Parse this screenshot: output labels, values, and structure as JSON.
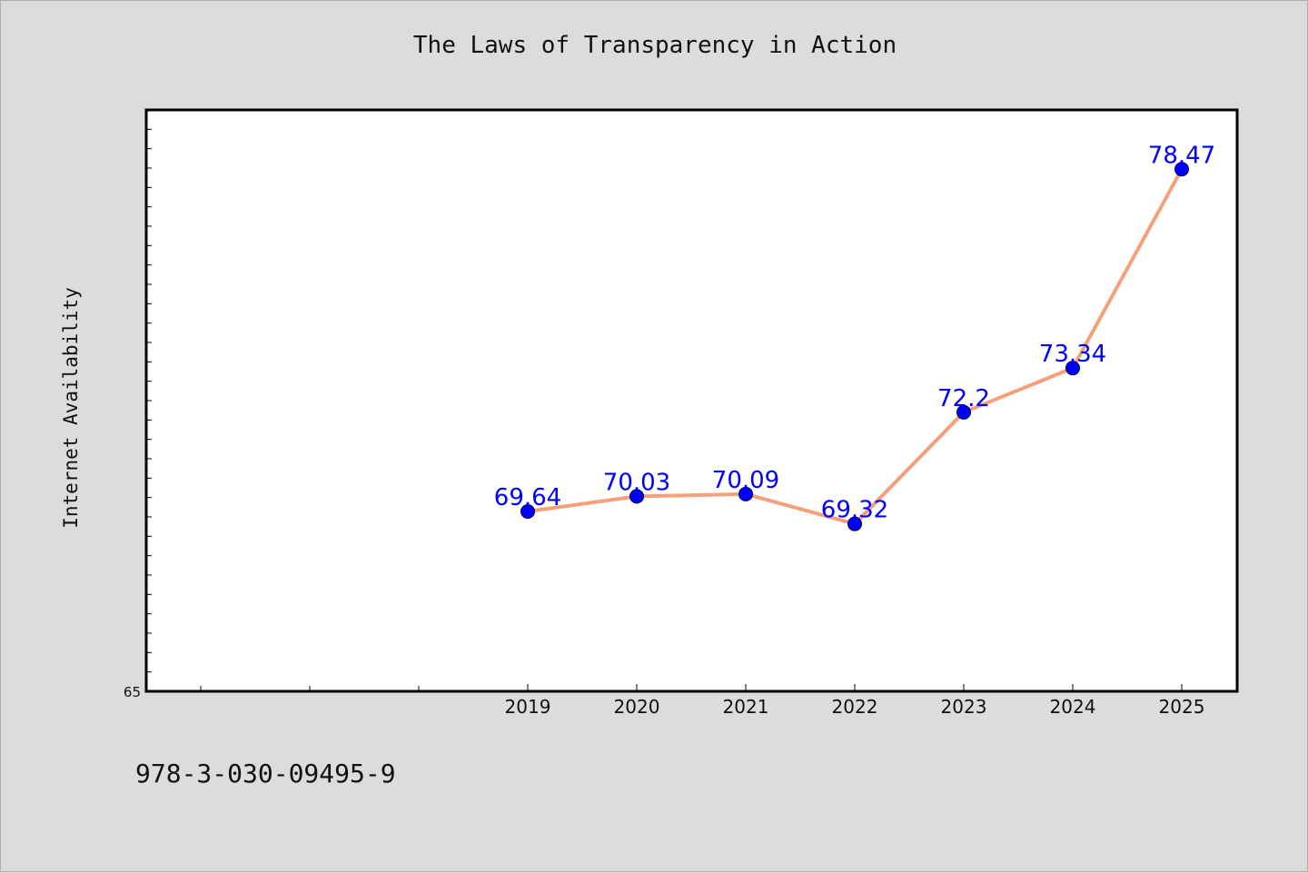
{
  "title": "The Laws of Transparency in Action",
  "footer_text": "978-3-030-09495-9",
  "colors": {
    "background": "#dcdcdc",
    "plot_background": "#ffffff",
    "line": "#f5a07a",
    "marker": "#0000ff",
    "data_label": "#0000ff"
  },
  "chart_data": {
    "type": "line",
    "title": "The Laws of Transparency in Action",
    "xlabel": "",
    "ylabel": "Internet Availability",
    "x": [
      "2019",
      "2020",
      "2021",
      "2022",
      "2023",
      "2024",
      "2025"
    ],
    "series": [
      {
        "values": [
          69.64,
          70.03,
          70.09,
          69.32,
          72.2,
          73.34,
          78.47
        ]
      }
    ],
    "data_labels": [
      "69.64",
      "70.03",
      "70.09",
      "69.32",
      "72.2",
      "73.34",
      "78.47"
    ],
    "ylim": [
      65,
      80
    ],
    "y_tick_labels": [
      "65"
    ],
    "grid": false,
    "legend": "none"
  }
}
